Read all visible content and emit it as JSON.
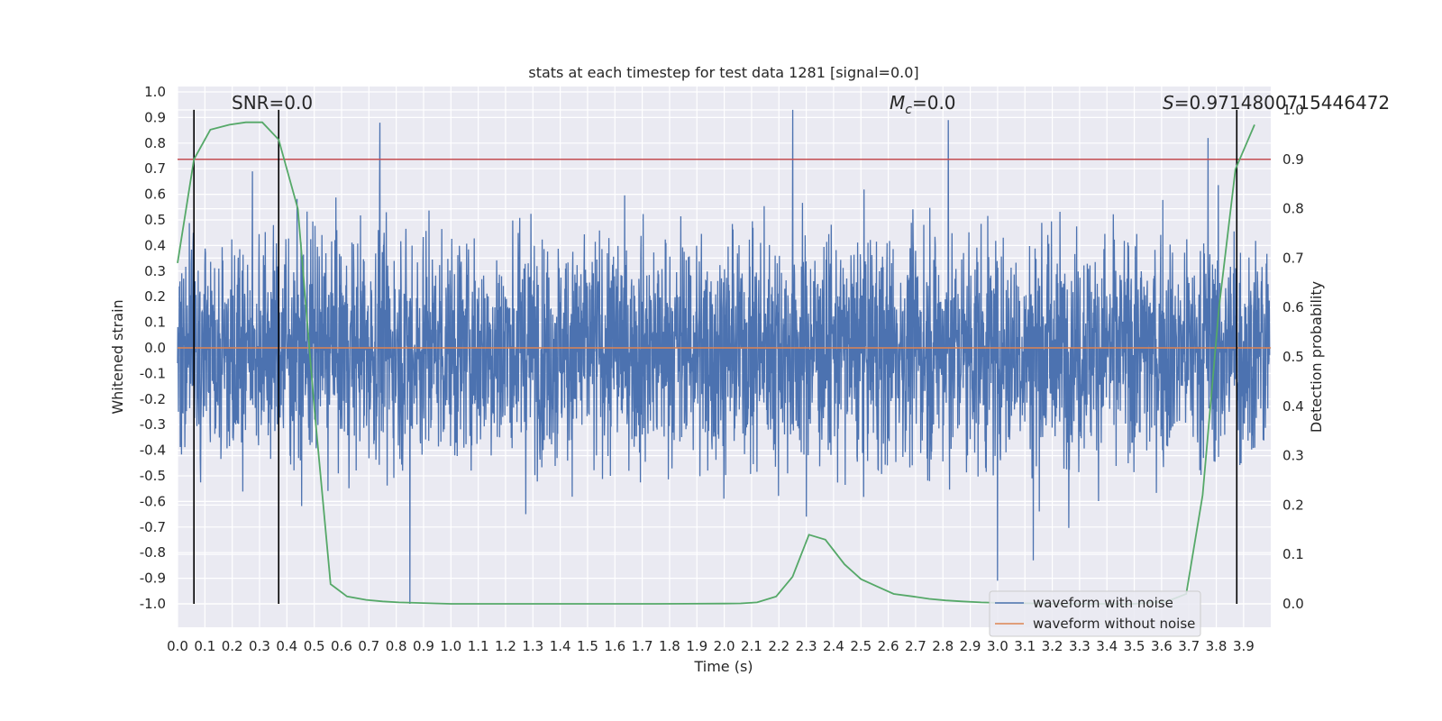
{
  "chart_data": {
    "type": "line",
    "title": "stats at each timestep for test data 1281 [signal=0.0]",
    "xlabel": "Time (s)",
    "ylabel": "Whitened strain",
    "y2label": "Detection probability",
    "xlim": [
      0.0,
      4.0
    ],
    "ylim": [
      -1.1,
      1.05
    ],
    "y2lim": [
      -0.05,
      1.05
    ],
    "xticks": [
      "0.0",
      "0.1",
      "0.2",
      "0.3",
      "0.4",
      "0.5",
      "0.6",
      "0.7",
      "0.8",
      "0.9",
      "1.0",
      "1.1",
      "1.2",
      "1.3",
      "1.4",
      "1.5",
      "1.6",
      "1.7",
      "1.8",
      "1.9",
      "2.0",
      "2.1",
      "2.2",
      "2.3",
      "2.4",
      "2.5",
      "2.6",
      "2.7",
      "2.8",
      "2.9",
      "3.0",
      "3.1",
      "3.2",
      "3.3",
      "3.4",
      "3.5",
      "3.6",
      "3.7",
      "3.8",
      "3.9"
    ],
    "yticks": [
      "1.0",
      "0.9",
      "0.8",
      "0.7",
      "0.6",
      "0.5",
      "0.4",
      "0.3",
      "0.2",
      "0.1",
      "0.0",
      "-0.1",
      "-0.2",
      "-0.3",
      "-0.4",
      "-0.5",
      "-0.6",
      "-0.7",
      "-0.8",
      "-0.9",
      "-1.0"
    ],
    "y2ticks": [
      "1.0",
      "0.9",
      "0.8",
      "0.7",
      "0.6",
      "0.5",
      "0.4",
      "0.3",
      "0.2",
      "0.1",
      "0.0"
    ],
    "annotations": {
      "snr": "SNR=0.0",
      "mc_symbol": "M",
      "mc_sub": "c",
      "mc_value": "=0.0",
      "s_symbol": "S",
      "s_value": "=0.9714800715446472"
    },
    "grid": true,
    "legend_position": "lower-right",
    "series": [
      {
        "name": "waveform with noise",
        "color": "#4c72b0",
        "axis": "left",
        "description_points": {
          "noise_amplitude": 0.4,
          "spikes": [
            {
              "x": 0.74,
              "y": 0.88
            },
            {
              "x": 2.25,
              "y": 0.93
            },
            {
              "x": 2.82,
              "y": 0.89
            },
            {
              "x": 3.77,
              "y": 0.82
            },
            {
              "x": 0.85,
              "y": -1.0
            },
            {
              "x": 3.0,
              "y": -0.91
            },
            {
              "x": 3.13,
              "y": -0.83
            }
          ]
        }
      },
      {
        "name": "waveform without noise",
        "color": "#dd8452",
        "axis": "left",
        "x": [
          0.0,
          4.0
        ],
        "y": [
          0.0,
          0.0
        ]
      },
      {
        "color": "#55a868",
        "axis": "right",
        "x": [
          0.0,
          0.06,
          0.12,
          0.19,
          0.25,
          0.31,
          0.37,
          0.44,
          0.5,
          0.56,
          0.62,
          0.69,
          0.75,
          0.81,
          0.87,
          0.94,
          1.0,
          1.25,
          1.5,
          1.75,
          2.0,
          2.06,
          2.12,
          2.19,
          2.25,
          2.31,
          2.37,
          2.44,
          2.5,
          2.56,
          2.62,
          2.69,
          2.75,
          2.81,
          2.87,
          2.94,
          3.0,
          3.25,
          3.5,
          3.62,
          3.69,
          3.75,
          3.81,
          3.87,
          3.94
        ],
        "y": [
          0.69,
          0.9,
          0.96,
          0.97,
          0.975,
          0.975,
          0.94,
          0.8,
          0.4,
          0.04,
          0.015,
          0.008,
          0.005,
          0.003,
          0.002,
          0.001,
          0.0,
          0.0,
          0.0,
          0.0,
          0.0005,
          0.001,
          0.003,
          0.015,
          0.055,
          0.14,
          0.13,
          0.08,
          0.05,
          0.035,
          0.02,
          0.015,
          0.01,
          0.007,
          0.005,
          0.003,
          0.002,
          0.0,
          0.0,
          0.005,
          0.02,
          0.22,
          0.6,
          0.88,
          0.97
        ]
      }
    ],
    "hlines": [
      {
        "axis": "right",
        "y": 0.9,
        "color": "#c44e52"
      }
    ],
    "vlines": [
      {
        "x": 0.06,
        "y_from": -1.0,
        "y_to": 0.93,
        "color": "#000000"
      },
      {
        "x": 0.37,
        "y_from": -1.0,
        "y_to": 0.93,
        "color": "#000000"
      },
      {
        "x": 3.875,
        "y_from": -1.0,
        "y_to": 0.93,
        "color": "#000000"
      }
    ]
  }
}
